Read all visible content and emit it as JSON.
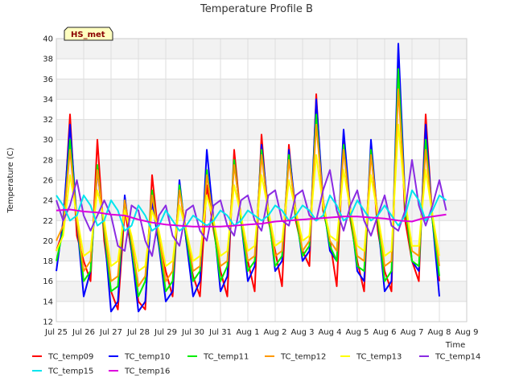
{
  "chart_data": {
    "type": "line",
    "title": "Temperature Profile B",
    "xlabel": "Time",
    "ylabel": "Temperature (C)",
    "ylim": [
      12,
      40
    ],
    "yticks": [
      12,
      14,
      16,
      18,
      20,
      22,
      24,
      26,
      28,
      30,
      32,
      34,
      36,
      38,
      40
    ],
    "xlim": [
      0,
      15
    ],
    "xticks": [
      {
        "pos": 0,
        "label": "Jul 25"
      },
      {
        "pos": 1,
        "label": "Jul 26"
      },
      {
        "pos": 2,
        "label": "Jul 27"
      },
      {
        "pos": 3,
        "label": "Jul 28"
      },
      {
        "pos": 4,
        "label": "Jul 29"
      },
      {
        "pos": 5,
        "label": "Jul 30"
      },
      {
        "pos": 6,
        "label": "Jul 31"
      },
      {
        "pos": 7,
        "label": "Aug 1"
      },
      {
        "pos": 8,
        "label": "Aug 2"
      },
      {
        "pos": 9,
        "label": "Aug 3"
      },
      {
        "pos": 10,
        "label": "Aug 4"
      },
      {
        "pos": 11,
        "label": "Aug 5"
      },
      {
        "pos": 12,
        "label": "Aug 6"
      },
      {
        "pos": 13,
        "label": "Aug 7"
      },
      {
        "pos": 14,
        "label": "Aug 8"
      },
      {
        "pos": 15,
        "label": "Aug 9"
      }
    ],
    "grid": true,
    "badge": "HS_met",
    "legend_position": "bottom",
    "series": [
      {
        "name": "TC_temp09",
        "color": "#ff0000",
        "x": [
          0.0,
          0.25,
          0.5,
          0.75,
          1.0,
          1.25,
          1.5,
          1.75,
          2.0,
          2.25,
          2.5,
          2.75,
          3.0,
          3.25,
          3.5,
          3.75,
          4.0,
          4.25,
          4.5,
          4.75,
          5.0,
          5.25,
          5.5,
          5.75,
          6.0,
          6.25,
          6.5,
          6.75,
          7.0,
          7.25,
          7.5,
          7.75,
          8.0,
          8.25,
          8.5,
          8.75,
          9.0,
          9.25,
          9.5,
          9.75,
          10.0,
          10.25,
          10.5,
          10.75,
          11.0,
          11.25,
          11.5,
          11.75,
          12.0,
          12.25,
          12.5,
          12.75,
          13.0,
          13.25,
          13.5,
          13.75,
          14.0,
          14.25
        ],
        "y": [
          19.0,
          21.0,
          32.5,
          20.5,
          18.0,
          16.0,
          30.0,
          20.0,
          15.0,
          13.2,
          23.0,
          19.0,
          14.0,
          13.2,
          26.5,
          20.0,
          17.0,
          14.5,
          25.5,
          20.0,
          16.5,
          14.5,
          25.5,
          21.0,
          17.0,
          14.5,
          29.0,
          22.0,
          18.0,
          15.0,
          30.5,
          22.0,
          19.0,
          15.5,
          29.5,
          22.0,
          19.0,
          17.5,
          34.5,
          23.0,
          20.0,
          15.5,
          30.0,
          22.0,
          18.0,
          15.0,
          29.5,
          21.0,
          17.0,
          15.0,
          38.0,
          22.0,
          18.0,
          16.0,
          32.5,
          22.0,
          16.0,
          null
        ]
      },
      {
        "name": "TC_temp10",
        "color": "#0000ff",
        "x": [
          0.0,
          0.25,
          0.5,
          0.75,
          1.0,
          1.25,
          1.5,
          1.75,
          2.0,
          2.25,
          2.5,
          2.75,
          3.0,
          3.25,
          3.5,
          3.75,
          4.0,
          4.25,
          4.5,
          4.75,
          5.0,
          5.25,
          5.5,
          5.75,
          6.0,
          6.25,
          6.5,
          6.75,
          7.0,
          7.25,
          7.5,
          7.75,
          8.0,
          8.25,
          8.5,
          8.75,
          9.0,
          9.25,
          9.5,
          9.75,
          10.0,
          10.25,
          10.5,
          10.75,
          11.0,
          11.25,
          11.5,
          11.75,
          12.0,
          12.25,
          12.5,
          12.75,
          13.0,
          13.25,
          13.5,
          13.75,
          14.0,
          14.25
        ],
        "y": [
          17.0,
          22.0,
          31.5,
          22.0,
          14.5,
          17.0,
          27.0,
          21.0,
          13.0,
          14.0,
          24.5,
          19.0,
          13.0,
          14.0,
          24.0,
          19.5,
          14.0,
          15.0,
          26.0,
          20.0,
          14.5,
          16.0,
          29.0,
          22.0,
          15.0,
          16.5,
          28.0,
          22.0,
          16.0,
          17.5,
          29.5,
          23.0,
          17.0,
          18.0,
          29.0,
          23.0,
          18.0,
          19.0,
          34.0,
          24.0,
          19.0,
          18.0,
          31.0,
          23.0,
          17.0,
          16.0,
          30.0,
          22.0,
          15.0,
          16.0,
          39.5,
          24.0,
          18.0,
          17.0,
          31.5,
          22.0,
          14.5,
          null
        ]
      },
      {
        "name": "TC_temp11",
        "color": "#00ee00",
        "x": [
          0.0,
          0.25,
          0.5,
          0.75,
          1.0,
          1.25,
          1.5,
          1.75,
          2.0,
          2.25,
          2.5,
          2.75,
          3.0,
          3.25,
          3.5,
          3.75,
          4.0,
          4.25,
          4.5,
          4.75,
          5.0,
          5.25,
          5.5,
          5.75,
          6.0,
          6.25,
          6.5,
          6.75,
          7.0,
          7.25,
          7.5,
          7.75,
          8.0,
          8.25,
          8.5,
          8.75,
          9.0,
          9.25,
          9.5,
          9.75,
          10.0,
          10.25,
          10.5,
          10.75,
          11.0,
          11.25,
          11.5,
          11.75,
          12.0,
          12.25,
          12.5,
          12.75,
          13.0,
          13.25,
          13.5,
          13.75,
          14.0,
          14.25
        ],
        "y": [
          18.0,
          21.0,
          30.0,
          22.0,
          16.0,
          17.0,
          27.5,
          21.0,
          15.0,
          15.5,
          24.0,
          19.5,
          14.5,
          16.0,
          25.0,
          20.0,
          15.0,
          16.0,
          25.5,
          20.5,
          16.0,
          17.0,
          27.0,
          21.5,
          16.0,
          17.5,
          28.0,
          22.0,
          17.0,
          18.0,
          29.0,
          22.5,
          17.5,
          18.5,
          28.5,
          22.5,
          18.5,
          19.5,
          32.5,
          23.5,
          19.5,
          18.0,
          29.5,
          22.5,
          17.5,
          17.0,
          29.0,
          22.0,
          16.0,
          17.0,
          37.0,
          23.5,
          18.0,
          17.5,
          30.0,
          22.0,
          16.5,
          null
        ]
      },
      {
        "name": "TC_temp12",
        "color": "#ff9900",
        "x": [
          0.0,
          0.25,
          0.5,
          0.75,
          1.0,
          1.25,
          1.5,
          1.75,
          2.0,
          2.25,
          2.5,
          2.75,
          3.0,
          3.25,
          3.5,
          3.75,
          4.0,
          4.25,
          4.5,
          4.75,
          5.0,
          5.25,
          5.5,
          5.75,
          6.0,
          6.25,
          6.5,
          6.75,
          7.0,
          7.25,
          7.5,
          7.75,
          8.0,
          8.25,
          8.5,
          8.75,
          9.0,
          9.25,
          9.5,
          9.75,
          10.0,
          10.25,
          10.5,
          10.75,
          11.0,
          11.25,
          11.5,
          11.75,
          12.0,
          12.25,
          12.5,
          12.75,
          13.0,
          13.25,
          13.5,
          13.75,
          14.0,
          14.25
        ],
        "y": [
          20.0,
          21.5,
          29.0,
          22.0,
          17.0,
          18.0,
          27.0,
          21.5,
          16.0,
          16.5,
          24.0,
          20.0,
          15.5,
          16.5,
          24.5,
          20.5,
          16.0,
          17.0,
          25.0,
          21.0,
          17.0,
          17.5,
          26.5,
          22.0,
          17.5,
          18.0,
          27.5,
          22.5,
          18.0,
          18.5,
          28.5,
          23.0,
          18.5,
          19.0,
          28.0,
          23.0,
          19.0,
          20.0,
          31.5,
          24.0,
          20.0,
          19.0,
          29.0,
          23.0,
          18.5,
          18.0,
          28.5,
          22.5,
          17.5,
          18.0,
          35.0,
          24.0,
          19.0,
          18.5,
          29.0,
          22.5,
          17.5,
          null
        ]
      },
      {
        "name": "TC_temp13",
        "color": "#ffff00",
        "x": [
          0.0,
          0.25,
          0.5,
          0.75,
          1.0,
          1.25,
          1.5,
          1.75,
          2.0,
          2.25,
          2.5,
          2.75,
          3.0,
          3.25,
          3.5,
          3.75,
          4.0,
          4.25,
          4.5,
          4.75,
          5.0,
          5.25,
          5.5,
          5.75,
          6.0,
          6.25,
          6.5,
          6.75,
          7.0,
          7.25,
          7.5,
          7.75,
          8.0,
          8.25,
          8.5,
          8.75,
          9.0,
          9.25,
          9.5,
          9.75,
          10.0,
          10.25,
          10.5,
          10.75,
          11.0,
          11.25,
          11.5,
          11.75,
          12.0,
          12.25,
          12.5,
          12.75,
          13.0,
          13.25,
          13.5,
          13.75,
          14.0,
          14.25
        ],
        "y": [
          19.0,
          20.5,
          26.5,
          22.5,
          18.5,
          19.0,
          25.0,
          22.0,
          17.5,
          18.0,
          23.0,
          20.5,
          17.0,
          17.5,
          23.0,
          21.0,
          17.5,
          18.0,
          23.5,
          21.0,
          18.0,
          18.5,
          24.5,
          22.0,
          18.5,
          19.0,
          25.5,
          22.5,
          19.0,
          19.5,
          26.5,
          23.0,
          19.5,
          20.0,
          26.0,
          23.0,
          20.0,
          20.5,
          28.5,
          23.5,
          20.5,
          20.0,
          27.0,
          23.0,
          19.5,
          19.0,
          26.5,
          22.5,
          18.5,
          19.0,
          31.5,
          24.0,
          19.5,
          19.5,
          27.0,
          22.5,
          18.5,
          null
        ]
      },
      {
        "name": "TC_temp14",
        "color": "#8a2be2",
        "x": [
          0.0,
          0.25,
          0.5,
          0.75,
          1.0,
          1.25,
          1.5,
          1.75,
          2.0,
          2.25,
          2.5,
          2.75,
          3.0,
          3.25,
          3.5,
          3.75,
          4.0,
          4.25,
          4.5,
          4.75,
          5.0,
          5.25,
          5.5,
          5.75,
          6.0,
          6.25,
          6.5,
          6.75,
          7.0,
          7.25,
          7.5,
          7.75,
          8.0,
          8.25,
          8.5,
          8.75,
          9.0,
          9.25,
          9.5,
          9.75,
          10.0,
          10.25,
          10.5,
          10.75,
          11.0,
          11.25,
          11.5,
          11.75,
          12.0,
          12.25,
          12.5,
          12.75,
          13.0,
          13.25,
          13.5,
          13.75,
          14.0,
          14.25
        ],
        "y": [
          24.0,
          22.0,
          23.5,
          26.0,
          22.5,
          21.0,
          22.5,
          24.0,
          22.5,
          19.5,
          19.0,
          23.5,
          23.0,
          20.0,
          18.5,
          22.5,
          23.5,
          20.5,
          19.5,
          23.0,
          23.5,
          21.0,
          20.0,
          23.5,
          24.0,
          21.5,
          20.5,
          24.0,
          24.5,
          22.0,
          21.0,
          24.5,
          25.0,
          22.0,
          21.5,
          24.5,
          25.0,
          22.5,
          22.0,
          25.0,
          27.0,
          23.0,
          21.0,
          23.5,
          25.0,
          22.0,
          20.5,
          22.5,
          24.5,
          21.5,
          21.0,
          23.0,
          28.0,
          23.5,
          21.5,
          23.5,
          26.0,
          23.0
        ]
      },
      {
        "name": "TC_temp15",
        "color": "#00e5ee",
        "x": [
          0.0,
          0.25,
          0.5,
          0.75,
          1.0,
          1.25,
          1.5,
          1.75,
          2.0,
          2.25,
          2.5,
          2.75,
          3.0,
          3.25,
          3.5,
          3.75,
          4.0,
          4.25,
          4.5,
          4.75,
          5.0,
          5.25,
          5.5,
          5.75,
          6.0,
          6.25,
          6.5,
          6.75,
          7.0,
          7.25,
          7.5,
          7.75,
          8.0,
          8.25,
          8.5,
          8.75,
          9.0,
          9.25,
          9.5,
          9.75,
          10.0,
          10.25,
          10.5,
          10.75,
          11.0,
          11.25,
          11.5,
          11.75,
          12.0,
          12.25,
          12.5,
          12.75,
          13.0,
          13.25,
          13.5,
          13.75,
          14.0,
          14.25
        ],
        "y": [
          24.5,
          23.5,
          22.0,
          22.5,
          24.5,
          23.5,
          21.5,
          22.0,
          24.0,
          23.0,
          21.0,
          21.5,
          23.5,
          22.5,
          21.0,
          21.5,
          23.0,
          22.0,
          21.0,
          21.5,
          22.5,
          22.0,
          21.5,
          22.0,
          23.0,
          22.5,
          21.5,
          22.0,
          23.0,
          22.5,
          22.0,
          22.5,
          23.5,
          23.0,
          22.0,
          22.5,
          23.5,
          23.0,
          22.0,
          22.5,
          24.5,
          23.5,
          22.0,
          22.5,
          24.0,
          23.0,
          22.0,
          22.5,
          23.5,
          22.5,
          21.5,
          22.5,
          25.0,
          24.0,
          22.0,
          23.0,
          24.5,
          24.0
        ]
      },
      {
        "name": "TC_temp16",
        "color": "#dd00dd",
        "x": [
          0.0,
          0.5,
          1.0,
          1.5,
          2.0,
          2.5,
          3.0,
          3.5,
          4.0,
          4.5,
          5.0,
          5.5,
          6.0,
          6.5,
          7.0,
          7.5,
          8.0,
          8.5,
          9.0,
          9.5,
          10.0,
          10.5,
          11.0,
          11.5,
          12.0,
          12.5,
          13.0,
          13.5,
          14.0,
          14.25
        ],
        "y": [
          23.0,
          23.1,
          22.9,
          22.8,
          22.6,
          22.5,
          22.1,
          21.8,
          21.6,
          21.5,
          21.4,
          21.4,
          21.4,
          21.5,
          21.6,
          21.7,
          21.9,
          22.0,
          22.1,
          22.2,
          22.3,
          22.4,
          22.4,
          22.3,
          22.2,
          22.0,
          21.9,
          22.3,
          22.5,
          22.6
        ]
      }
    ]
  }
}
